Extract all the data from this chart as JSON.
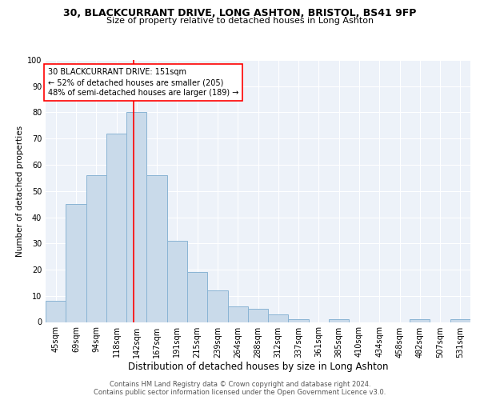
{
  "title1": "30, BLACKCURRANT DRIVE, LONG ASHTON, BRISTOL, BS41 9FP",
  "title2": "Size of property relative to detached houses in Long Ashton",
  "xlabel": "Distribution of detached houses by size in Long Ashton",
  "ylabel": "Number of detached properties",
  "categories": [
    "45sqm",
    "69sqm",
    "94sqm",
    "118sqm",
    "142sqm",
    "167sqm",
    "191sqm",
    "215sqm",
    "239sqm",
    "264sqm",
    "288sqm",
    "312sqm",
    "337sqm",
    "361sqm",
    "385sqm",
    "410sqm",
    "434sqm",
    "458sqm",
    "482sqm",
    "507sqm",
    "531sqm"
  ],
  "values": [
    8,
    45,
    56,
    72,
    80,
    56,
    31,
    19,
    12,
    6,
    5,
    3,
    1,
    0,
    1,
    0,
    0,
    0,
    1,
    0,
    1
  ],
  "bar_color": "#c9daea",
  "bar_edge_color": "#8ab4d4",
  "annotation_line1": "30 BLACKCURRANT DRIVE: 151sqm",
  "annotation_line2": "← 52% of detached houses are smaller (205)",
  "annotation_line3": "48% of semi-detached houses are larger (189) →",
  "annotation_box_edge_color": "red",
  "line_color": "red",
  "ylim": [
    0,
    100
  ],
  "yticks": [
    0,
    10,
    20,
    30,
    40,
    50,
    60,
    70,
    80,
    90,
    100
  ],
  "footer1": "Contains HM Land Registry data © Crown copyright and database right 2024.",
  "footer2": "Contains public sector information licensed under the Open Government Licence v3.0.",
  "plot_bg_color": "#edf2f9",
  "title1_fontsize": 9,
  "title2_fontsize": 8,
  "xlabel_fontsize": 8.5,
  "ylabel_fontsize": 7.5,
  "tick_fontsize": 7,
  "annotation_fontsize": 7,
  "footer_fontsize": 6,
  "bin_starts": [
    45,
    69,
    94,
    118,
    142,
    167,
    191,
    215,
    239,
    264,
    288,
    312,
    337,
    361,
    385,
    410,
    434,
    458,
    482,
    507,
    531
  ],
  "property_sqm": 151
}
